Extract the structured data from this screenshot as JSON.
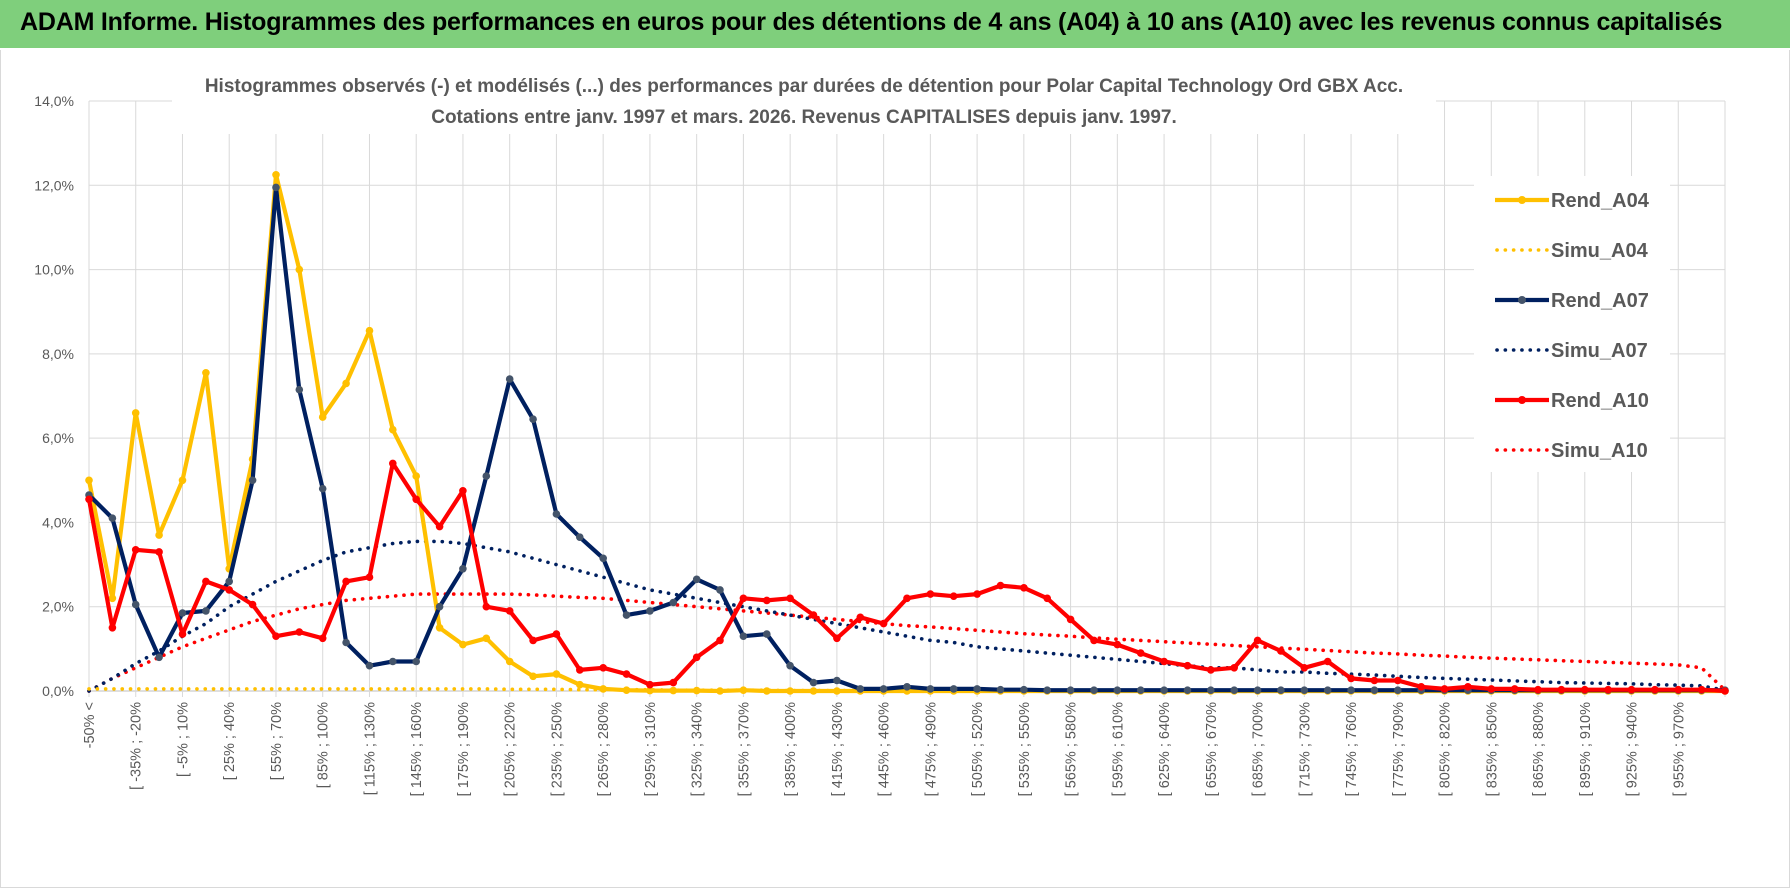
{
  "banner": {
    "title": "ADAM Informe. Histogrammes des performances en euros pour des détentions de 4 ans (A04) à 10 ans (A10) avec les revenus connus capitalisés"
  },
  "chart_data": {
    "type": "line",
    "title_line1": "Histogrammes observés (-) et modélisés (...) des performances par durées de détention pour Polar Capital Technology Ord GBX Acc.",
    "title_line2": "Cotations entre janv. 1997 et mars. 2026.  Revenus CAPITALISES depuis janv. 1997.",
    "y_ticks": [
      "0,0%",
      "2,0%",
      "4,0%",
      "6,0%",
      "8,0%",
      "10,0%",
      "12,0%",
      "14,0%"
    ],
    "ylim": [
      0,
      14
    ],
    "x_tick_labels": [
      "-50% <",
      "[ -35% ; -20%",
      "[ -5% ; 10%",
      "[ 25% ; 40%",
      "[ 55% ; 70%",
      "[ 85% ; 100%",
      "[ 115% ; 130%",
      "[ 145% ; 160%",
      "[ 175% ; 190%",
      "[ 205% ; 220%",
      "[ 235% ; 250%",
      "[ 265% ; 280%",
      "[ 295% ; 310%",
      "[ 325% ; 340%",
      "[ 355% ; 370%",
      "[ 385% ; 400%",
      "[ 415% ; 430%",
      "[ 445% ; 460%",
      "[ 475% ; 490%",
      "[ 505% ; 520%",
      "[ 535% ; 550%",
      "[ 565% ; 580%",
      "[ 595% ; 610%",
      "[ 625% ; 640%",
      "[ 655% ; 670%",
      "[ 685% ; 700%",
      "[ 715% ; 730%",
      "[ 745% ; 760%",
      "[ 775% ; 790%",
      "[ 805% ; 820%",
      "[ 835% ; 850%",
      "[ 865% ; 880%",
      "[ 895% ; 910%",
      "[ 925% ; 940%",
      "[ 955% ; 970%"
    ],
    "n_categories": 71,
    "series": [
      {
        "name": "Rend_A04",
        "color": "#ffc000",
        "style": "solid",
        "markers": true,
        "values": [
          5.0,
          2.2,
          6.6,
          3.7,
          5.0,
          7.55,
          2.9,
          5.5,
          12.25,
          10.0,
          6.5,
          7.3,
          8.55,
          6.2,
          5.1,
          1.5,
          1.1,
          1.25,
          0.7,
          0.35,
          0.4,
          0.15,
          0.05,
          0.02,
          0.01,
          0.01,
          0.01,
          0.0,
          0.02,
          0.0,
          0.0,
          0.0,
          0.0,
          0.0,
          0.0,
          0.0,
          0.0,
          0.0,
          0.0,
          0.0,
          0.0,
          0.0,
          0.0,
          0.0,
          0.0,
          0.0,
          0.0,
          0.0,
          0.0,
          0.0,
          0.0,
          0.0,
          0.0,
          0.0,
          0.0,
          0.0,
          0.0,
          0.0,
          0.0,
          0.0,
          0.0,
          0.0,
          0.0,
          0.0,
          0.0,
          0.0,
          0.0,
          0.0,
          0.0,
          0.0,
          0.0
        ]
      },
      {
        "name": "Simu_A04",
        "color": "#ffc000",
        "style": "dotted",
        "markers": false,
        "values": [
          0.05,
          0.05,
          0.05,
          0.05,
          0.05,
          0.05,
          0.05,
          0.05,
          0.05,
          0.05,
          0.05,
          0.05,
          0.05,
          0.05,
          0.05,
          0.05,
          0.05,
          0.05,
          0.04,
          0.04,
          0.04,
          0.03,
          0.03,
          0.03,
          0.03,
          0.02,
          0.02,
          0.02,
          0.02,
          0.02,
          0.01,
          0.01,
          0.01,
          0.01,
          0.01,
          0.01,
          0.01,
          0.0,
          0.0,
          0.0,
          0.0,
          0.0,
          0.0,
          0.0,
          0.0,
          0.0,
          0.0,
          0.0,
          0.0,
          0.0,
          0.0,
          0.0,
          0.0,
          0.0,
          0.0,
          0.0,
          0.0,
          0.0,
          0.0,
          0.0,
          0.0,
          0.0,
          0.0,
          0.0,
          0.0,
          0.0,
          0.0,
          0.0,
          0.0,
          0.0,
          0.0
        ]
      },
      {
        "name": "Rend_A07",
        "color": "#002060",
        "style": "solid",
        "markers": true,
        "values": [
          4.65,
          4.1,
          2.05,
          0.8,
          1.85,
          1.9,
          2.6,
          5.0,
          11.95,
          7.15,
          4.8,
          1.15,
          0.6,
          0.7,
          0.7,
          2.0,
          2.9,
          5.1,
          7.4,
          6.45,
          4.2,
          3.65,
          3.15,
          1.8,
          1.9,
          2.1,
          2.65,
          2.4,
          1.3,
          1.35,
          0.6,
          0.2,
          0.25,
          0.05,
          0.05,
          0.1,
          0.05,
          0.05,
          0.05,
          0.03,
          0.03,
          0.02,
          0.02,
          0.02,
          0.02,
          0.02,
          0.02,
          0.02,
          0.02,
          0.02,
          0.02,
          0.02,
          0.02,
          0.02,
          0.02,
          0.02,
          0.02,
          0.02,
          0.02,
          0.02,
          0.02,
          0.02,
          0.02,
          0.02,
          0.02,
          0.02,
          0.02,
          0.02,
          0.02,
          0.02,
          0.02
        ]
      },
      {
        "name": "Simu_A07",
        "color": "#002060",
        "style": "dotted",
        "markers": false,
        "values": [
          0.0,
          0.3,
          0.65,
          0.95,
          1.3,
          1.6,
          2.0,
          2.3,
          2.6,
          2.85,
          3.1,
          3.3,
          3.4,
          3.5,
          3.55,
          3.55,
          3.5,
          3.4,
          3.3,
          3.15,
          3.0,
          2.85,
          2.7,
          2.55,
          2.4,
          2.3,
          2.2,
          2.1,
          2.0,
          1.9,
          1.8,
          1.7,
          1.6,
          1.5,
          1.4,
          1.3,
          1.2,
          1.15,
          1.05,
          1.0,
          0.95,
          0.9,
          0.85,
          0.8,
          0.75,
          0.7,
          0.65,
          0.6,
          0.55,
          0.55,
          0.5,
          0.45,
          0.45,
          0.42,
          0.4,
          0.38,
          0.35,
          0.32,
          0.3,
          0.28,
          0.26,
          0.24,
          0.22,
          0.2,
          0.19,
          0.18,
          0.17,
          0.15,
          0.14,
          0.12,
          0.02
        ]
      },
      {
        "name": "Rend_A10",
        "color": "#ff0000",
        "style": "solid",
        "markers": true,
        "values": [
          4.55,
          1.5,
          3.35,
          3.3,
          1.35,
          2.6,
          2.4,
          2.05,
          1.3,
          1.4,
          1.25,
          2.6,
          2.7,
          5.4,
          4.55,
          3.9,
          4.75,
          2.0,
          1.9,
          1.2,
          1.35,
          0.5,
          0.55,
          0.4,
          0.15,
          0.2,
          0.8,
          1.2,
          2.2,
          2.15,
          2.2,
          1.8,
          1.25,
          1.75,
          1.6,
          2.2,
          2.3,
          2.25,
          2.3,
          2.5,
          2.45,
          2.2,
          1.7,
          1.2,
          1.1,
          0.9,
          0.7,
          0.6,
          0.5,
          0.55,
          1.2,
          0.95,
          0.55,
          0.7,
          0.3,
          0.25,
          0.25,
          0.1,
          0.05,
          0.1,
          0.05,
          0.05,
          0.03,
          0.03,
          0.03,
          0.03,
          0.03,
          0.03,
          0.03,
          0.03,
          0.0
        ]
      },
      {
        "name": "Simu_A10",
        "color": "#ff0000",
        "style": "dotted",
        "markers": false,
        "values": [
          0.0,
          0.3,
          0.55,
          0.8,
          1.05,
          1.25,
          1.45,
          1.65,
          1.8,
          1.95,
          2.05,
          2.15,
          2.2,
          2.25,
          2.3,
          2.3,
          2.3,
          2.3,
          2.3,
          2.28,
          2.25,
          2.22,
          2.2,
          2.15,
          2.1,
          2.05,
          2.0,
          1.95,
          1.9,
          1.85,
          1.8,
          1.75,
          1.7,
          1.65,
          1.6,
          1.55,
          1.52,
          1.48,
          1.44,
          1.4,
          1.36,
          1.33,
          1.3,
          1.26,
          1.23,
          1.2,
          1.17,
          1.14,
          1.11,
          1.08,
          1.05,
          1.02,
          0.99,
          0.96,
          0.93,
          0.9,
          0.88,
          0.85,
          0.83,
          0.8,
          0.78,
          0.76,
          0.74,
          0.72,
          0.7,
          0.68,
          0.66,
          0.64,
          0.62,
          0.55,
          0.02
        ]
      }
    ]
  }
}
